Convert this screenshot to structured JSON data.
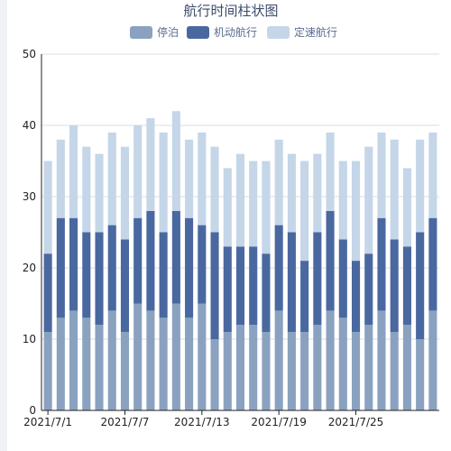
{
  "chart_data": {
    "type": "bar",
    "stacked": true,
    "title": "航行时间柱状图",
    "legend_position": "top",
    "grid": true,
    "ylim": [
      0,
      50
    ],
    "y_ticks": [
      0,
      10,
      20,
      30,
      40,
      50
    ],
    "categories": [
      "2021/7/1",
      "2021/7/2",
      "2021/7/3",
      "2021/7/4",
      "2021/7/5",
      "2021/7/6",
      "2021/7/7",
      "2021/7/8",
      "2021/7/9",
      "2021/7/10",
      "2021/7/11",
      "2021/7/12",
      "2021/7/13",
      "2021/7/14",
      "2021/7/15",
      "2021/7/16",
      "2021/7/17",
      "2021/7/18",
      "2021/7/19",
      "2021/7/20",
      "2021/7/21",
      "2021/7/22",
      "2021/7/23",
      "2021/7/24",
      "2021/7/25",
      "2021/7/26",
      "2021/7/27",
      "2021/7/28",
      "2021/7/29",
      "2021/7/30",
      "2021/7/31"
    ],
    "x_tick_labels": [
      "2021/7/1",
      "2021/7/7",
      "2021/7/13",
      "2021/7/19",
      "2021/7/25"
    ],
    "series": [
      {
        "name": "停泊",
        "color": "#8aa2c0",
        "values": [
          11,
          13,
          14,
          13,
          12,
          14,
          11,
          15,
          14,
          13,
          15,
          13,
          15,
          10,
          11,
          12,
          12,
          11,
          14,
          11,
          11,
          12,
          14,
          13,
          11,
          12,
          14,
          11,
          12,
          10,
          14
        ]
      },
      {
        "name": "机动航行",
        "color": "#4a68a0",
        "values": [
          11,
          14,
          13,
          12,
          13,
          12,
          13,
          12,
          14,
          12,
          13,
          14,
          11,
          15,
          12,
          11,
          11,
          11,
          12,
          14,
          10,
          13,
          14,
          11,
          10,
          10,
          13,
          13,
          11,
          15,
          13
        ]
      },
      {
        "name": "定速航行",
        "color": "#c4d6e8",
        "values": [
          13,
          11,
          13,
          12,
          11,
          13,
          13,
          13,
          13,
          14,
          14,
          11,
          13,
          12,
          11,
          13,
          12,
          13,
          12,
          11,
          14,
          11,
          11,
          11,
          14,
          15,
          12,
          14,
          11,
          13,
          12
        ]
      }
    ]
  }
}
